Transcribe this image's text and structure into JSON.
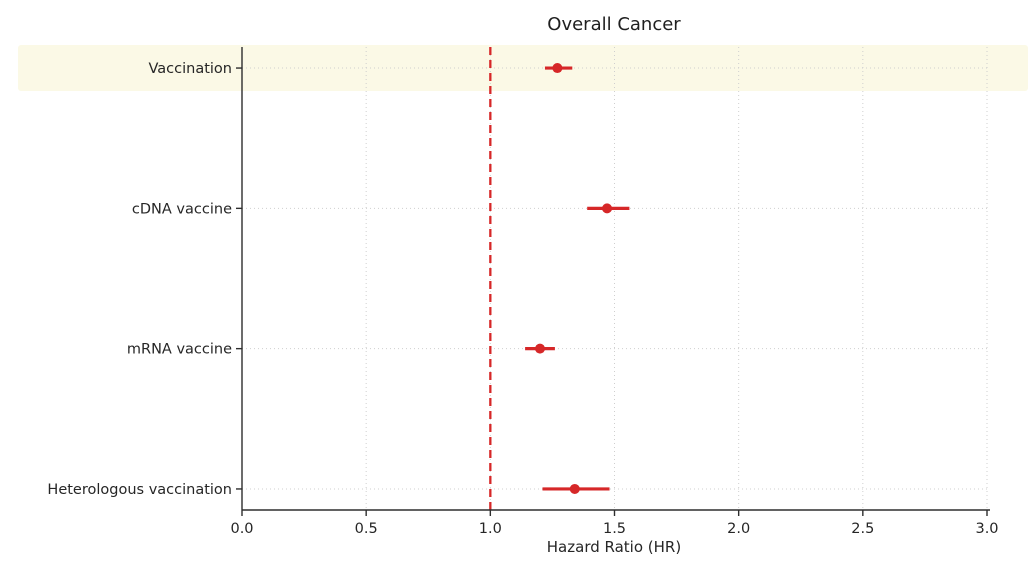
{
  "chart_data": {
    "type": "scatter",
    "subtype": "forest-plot",
    "title": "Overall Cancer",
    "xlabel": "Hazard Ratio (HR)",
    "xlim": [
      0,
      3
    ],
    "xticks": [
      {
        "value": 0.0,
        "label": "0.0"
      },
      {
        "value": 0.5,
        "label": "0.5"
      },
      {
        "value": 1.0,
        "label": "1.0"
      },
      {
        "value": 1.5,
        "label": "1.5"
      },
      {
        "value": 2.0,
        "label": "2.0"
      },
      {
        "value": 2.5,
        "label": "2.5"
      },
      {
        "value": 3.0,
        "label": "3.0"
      }
    ],
    "categories": [
      "Vaccination",
      "cDNA vaccine",
      "mRNA vaccine",
      "Heterologous vaccination"
    ],
    "points": [
      {
        "category": "Vaccination",
        "hr": 1.27,
        "ci_low": 1.22,
        "ci_high": 1.33
      },
      {
        "category": "cDNA vaccine",
        "hr": 1.47,
        "ci_low": 1.39,
        "ci_high": 1.56
      },
      {
        "category": "mRNA vaccine",
        "hr": 1.2,
        "ci_low": 1.14,
        "ci_high": 1.26
      },
      {
        "category": "Heterologous vaccination",
        "hr": 1.34,
        "ci_low": 1.21,
        "ci_high": 1.48
      }
    ],
    "reference_line_x": 1.0,
    "highlighted_category": "Vaccination",
    "grid": true,
    "legend": false,
    "colors": {
      "point": "#d62728",
      "reference_line": "#d62728",
      "highlight_band": "#fbf9e6",
      "grid": "#cfcfcf",
      "axis": "#2e2e2e",
      "text": "#262626"
    }
  }
}
